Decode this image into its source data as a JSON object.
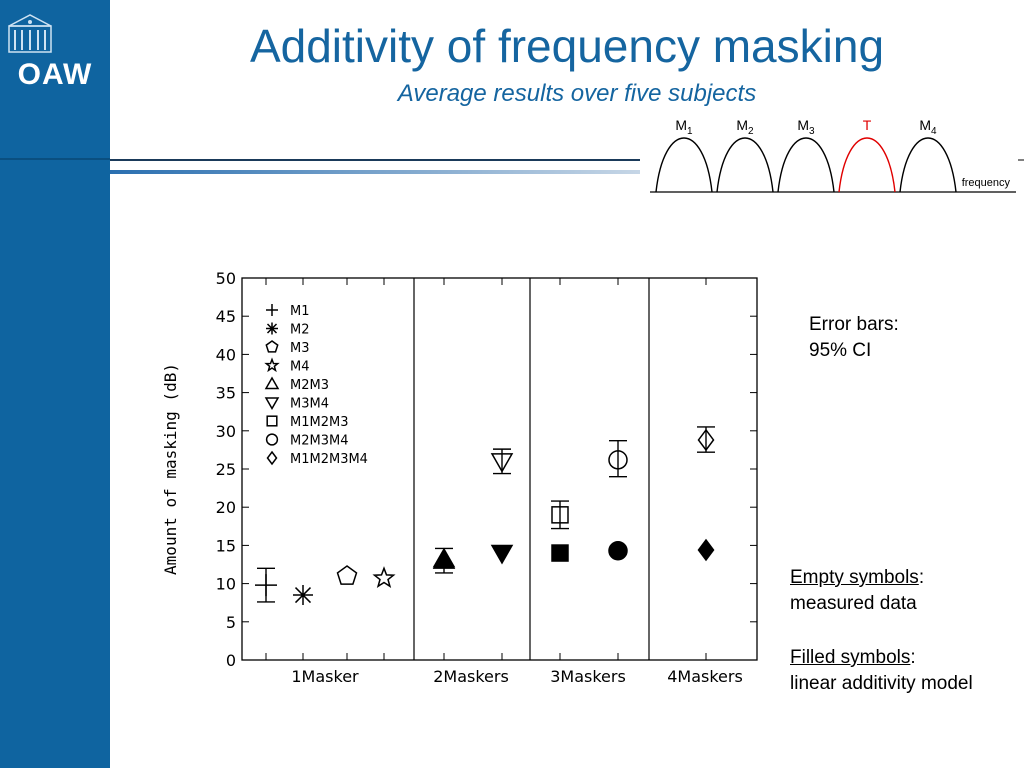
{
  "logo": {
    "text": "OAW"
  },
  "header": {
    "title": "Additivity of frequency masking",
    "subtitle": "Average results over five subjects"
  },
  "diagram": {
    "labels": [
      {
        "main": "M",
        "sub": "1",
        "color": "#000000"
      },
      {
        "main": "M",
        "sub": "2",
        "color": "#000000"
      },
      {
        "main": "M",
        "sub": "3",
        "color": "#000000"
      },
      {
        "main": "T",
        "sub": "",
        "color": "#e00000"
      },
      {
        "main": "M",
        "sub": "4",
        "color": "#000000"
      }
    ],
    "axis_label": "frequency"
  },
  "chart_data": {
    "type": "scatter",
    "ylabel": "Amount of masking (dB)",
    "xlabel": "",
    "ylim": [
      0,
      50
    ],
    "yticks": [
      0,
      5,
      10,
      15,
      20,
      25,
      30,
      35,
      40,
      45,
      50
    ],
    "groups": [
      "1Masker",
      "2Maskers",
      "3Maskers",
      "4Maskers"
    ],
    "grid": false,
    "legend_position": "top-left",
    "legend": [
      {
        "marker": "plus",
        "label": "M1"
      },
      {
        "marker": "asterisk",
        "label": "M2"
      },
      {
        "marker": "pentagon",
        "label": "M3"
      },
      {
        "marker": "star",
        "label": "M4"
      },
      {
        "marker": "triangle-up",
        "label": "M2M3"
      },
      {
        "marker": "triangle-down",
        "label": "M3M4"
      },
      {
        "marker": "square",
        "label": "M1M2M3"
      },
      {
        "marker": "circle",
        "label": "M2M3M4"
      },
      {
        "marker": "diamond",
        "label": "M1M2M3M4"
      }
    ],
    "measured": [
      {
        "group": "1Masker",
        "series": "M1",
        "marker": "plus",
        "y": 9.8,
        "ci": [
          7.6,
          12.0
        ]
      },
      {
        "group": "1Masker",
        "series": "M2",
        "marker": "asterisk",
        "y": 8.5
      },
      {
        "group": "1Masker",
        "series": "M3",
        "marker": "pentagon",
        "y": 11.0
      },
      {
        "group": "1Masker",
        "series": "M4",
        "marker": "star",
        "y": 10.7
      },
      {
        "group": "2Maskers",
        "series": "M2M3",
        "marker": "triangle-up",
        "y": 13.2,
        "ci": [
          11.4,
          14.6
        ]
      },
      {
        "group": "2Maskers",
        "series": "M3M4",
        "marker": "triangle-down",
        "y": 26.0,
        "ci": [
          24.4,
          27.6
        ]
      },
      {
        "group": "3Maskers",
        "series": "M1M2M3",
        "marker": "square",
        "y": 19.0,
        "ci": [
          17.2,
          20.8
        ]
      },
      {
        "group": "3Maskers",
        "series": "M2M3M4",
        "marker": "circle",
        "y": 26.2,
        "ci": [
          24.0,
          28.7
        ]
      },
      {
        "group": "4Maskers",
        "series": "M1M2M3M4",
        "marker": "diamond",
        "y": 28.8,
        "ci": [
          27.2,
          30.5
        ]
      }
    ],
    "model": [
      {
        "group": "2Maskers",
        "series": "M2M3",
        "marker": "triangle-up",
        "y": 13.0
      },
      {
        "group": "2Maskers",
        "series": "M3M4",
        "marker": "triangle-down",
        "y": 14.0
      },
      {
        "group": "3Maskers",
        "series": "M1M2M3",
        "marker": "square",
        "y": 14.0
      },
      {
        "group": "3Maskers",
        "series": "M2M3M4",
        "marker": "circle",
        "y": 14.3
      },
      {
        "group": "4Maskers",
        "series": "M1M2M3M4",
        "marker": "diamond",
        "y": 14.4
      }
    ]
  },
  "notes": {
    "error_bars_line1": "Error bars:",
    "error_bars_line2": "95% CI",
    "empty_label": "Empty symbols",
    "empty_desc": "measured data",
    "filled_label": "Filled symbols",
    "filled_desc": "linear additivity model",
    "colon": ":"
  }
}
